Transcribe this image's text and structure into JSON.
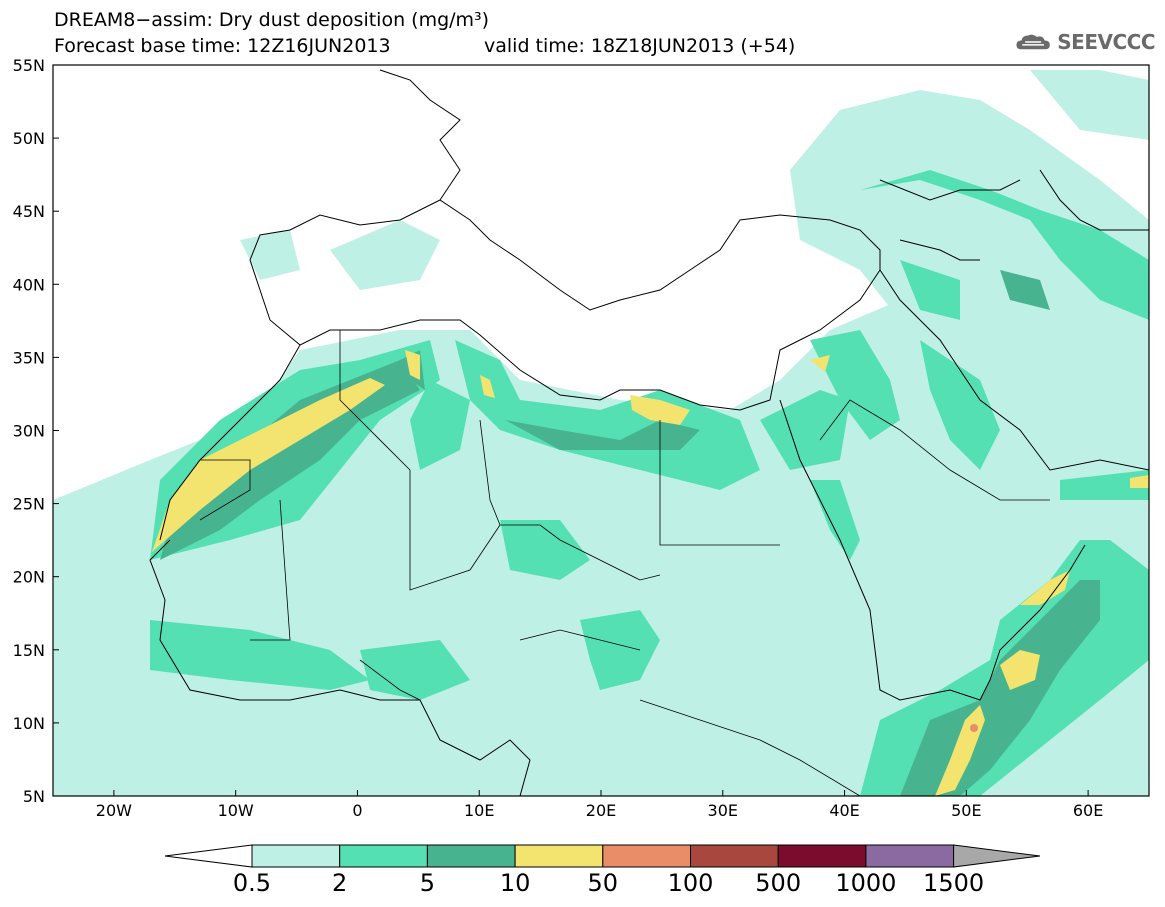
{
  "header": {
    "title_line1": "DREAM8−assim: Dry dust deposition (mg/m³)",
    "title_line2": "Forecast base time: 12Z16JUN2013",
    "valid_time": "valid time: 18Z18JUN2013 (+54)",
    "logo_text": "SEEVCCC"
  },
  "map": {
    "lon_range": [
      -25,
      65
    ],
    "lat_range": [
      5,
      55
    ],
    "lat_ticks": [
      "55N",
      "50N",
      "45N",
      "40N",
      "35N",
      "30N",
      "25N",
      "20N",
      "15N",
      "10N",
      "5N"
    ],
    "lon_ticks": [
      "20W",
      "10W",
      "0",
      "10E",
      "20E",
      "30E",
      "40E",
      "50E",
      "60E"
    ]
  },
  "colorbar": {
    "labels": [
      "0.5",
      "2",
      "5",
      "10",
      "50",
      "100",
      "500",
      "1000",
      "1500"
    ],
    "colors": [
      "#bff0e6",
      "#55e0b4",
      "#48b48f",
      "#f2e46e",
      "#e98c68",
      "#a8473e",
      "#7b0c2e",
      "#8a6aa0",
      "#a8a8a8"
    ],
    "under_color": "#ffffff"
  }
}
